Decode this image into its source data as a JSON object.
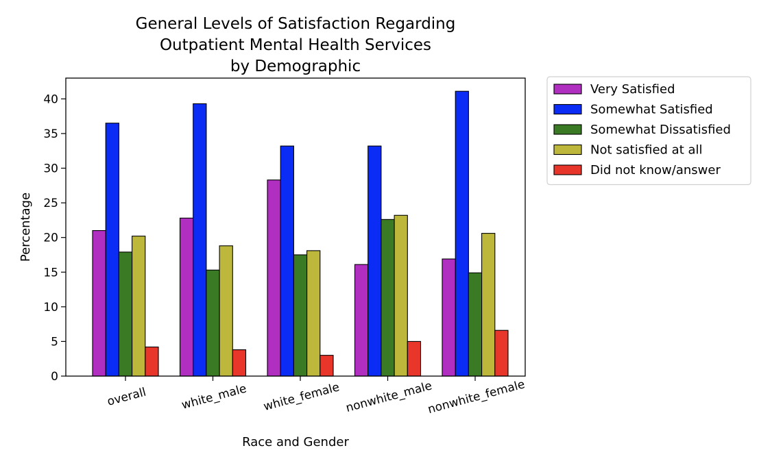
{
  "chart_data": {
    "type": "bar",
    "title_lines": [
      "General Levels of Satisfaction Regarding",
      "Outpatient Mental Health Services",
      "by Demographic"
    ],
    "xlabel": "Race and Gender",
    "ylabel": "Percentage",
    "ylim": [
      0,
      43
    ],
    "yticks": [
      0,
      5,
      10,
      15,
      20,
      25,
      30,
      35,
      40
    ],
    "categories": [
      "overall",
      "white_male",
      "white_female",
      "nonwhite_male",
      "nonwhite_female"
    ],
    "series": [
      {
        "name": "Very Satisfied",
        "color": "#b02fc0",
        "values": [
          21.0,
          22.8,
          28.3,
          16.1,
          16.9
        ]
      },
      {
        "name": "Somewhat Satisfied",
        "color": "#0a2cf5",
        "values": [
          36.5,
          39.3,
          33.2,
          33.2,
          41.1
        ]
      },
      {
        "name": "Somewhat Dissatisfied",
        "color": "#3a7a25",
        "values": [
          17.9,
          15.3,
          17.5,
          22.6,
          14.9
        ]
      },
      {
        "name": "Not satisfied at all",
        "color": "#bdb83c",
        "values": [
          20.2,
          18.8,
          18.1,
          23.2,
          20.6
        ]
      },
      {
        "name": "Did not know/answer",
        "color": "#e8362b",
        "values": [
          4.2,
          3.8,
          3.0,
          5.0,
          6.6
        ]
      }
    ],
    "legend_position": "outside-right",
    "grid": false
  }
}
